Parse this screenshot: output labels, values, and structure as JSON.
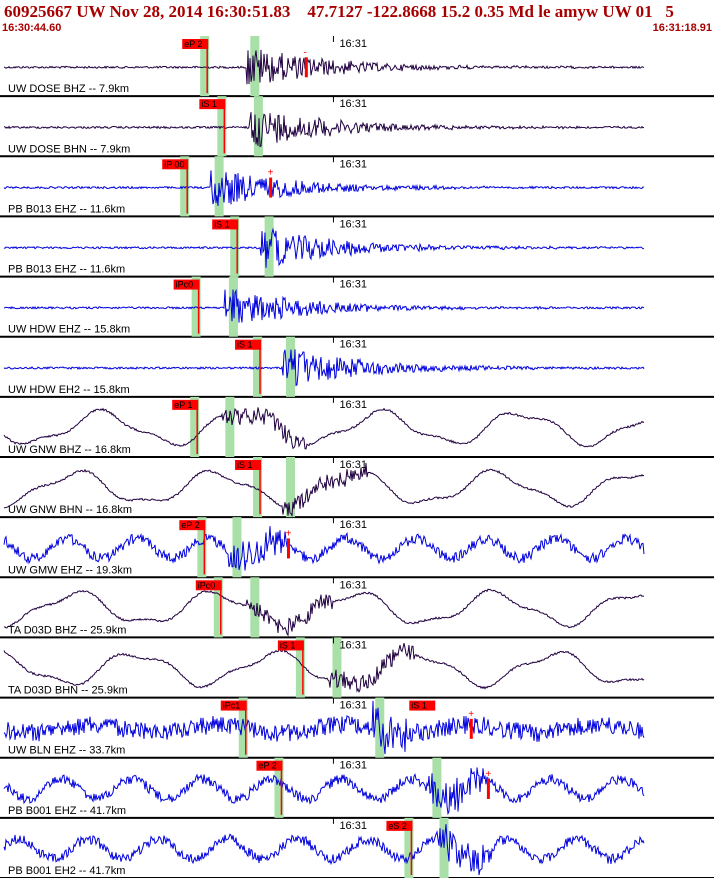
{
  "header": {
    "title": "60925667 UW Nov 28, 2014 16:30:51.83    47.7127 -122.8668 15.2 0.35 Md le amyw UW 01   5",
    "start_time": "16:30:44.60",
    "end_time": "16:31:18.91"
  },
  "colors": {
    "header_text": "#a80000",
    "pick_box": "#ff0000",
    "phase_band": "#a8e0a8",
    "trace_dark": "#200040",
    "trace_blue": "#0000dd",
    "panel_border": "#000000"
  },
  "chart_data": {
    "type": "seismogram",
    "time_tick_label": "16:31",
    "traces": [
      {
        "label": "UW DOSE BHZ -- 7.9km",
        "color": "dark",
        "style": "small",
        "onset": 0.345,
        "pick_label": "eP 2",
        "pick_pos": 0.286,
        "extra_marks": [
          "-"
        ]
      },
      {
        "label": "UW DOSE BHN -- 7.9km",
        "color": "dark",
        "style": "small",
        "onset": 0.35,
        "pick_label": "iS 1",
        "pick_pos": 0.31,
        "extra_marks": []
      },
      {
        "label": "PB B013 EHZ -- 11.6km",
        "color": "blue",
        "style": "small",
        "onset": 0.295,
        "pick_label": "iP 00",
        "pick_pos": 0.258,
        "extra_marks": [
          "+"
        ]
      },
      {
        "label": "PB B013 EHZ -- 11.6km",
        "color": "blue",
        "style": "small",
        "onset": 0.365,
        "pick_label": "iS 1",
        "pick_pos": 0.328,
        "extra_marks": []
      },
      {
        "label": "UW HDW EHZ -- 15.8km",
        "color": "blue",
        "style": "small",
        "onset": 0.315,
        "pick_label": "iPc0",
        "pick_pos": 0.274,
        "extra_marks": []
      },
      {
        "label": "UW HDW EH2 -- 15.8km",
        "color": "blue",
        "style": "small",
        "onset": 0.395,
        "pick_label": "iS 1",
        "pick_pos": 0.36,
        "extra_marks": []
      },
      {
        "label": "UW GNW BHZ -- 16.8km",
        "color": "dark",
        "style": "wave",
        "onset": 0.31,
        "pick_label": "eP 1",
        "pick_pos": 0.272,
        "extra_marks": []
      },
      {
        "label": "UW GNW BHN -- 16.8km",
        "color": "dark",
        "style": "wave",
        "onset": 0.395,
        "pick_label": "iS 1",
        "pick_pos": 0.36,
        "extra_marks": []
      },
      {
        "label": "UW GMW EHZ -- 19.3km",
        "color": "blue",
        "style": "noisy",
        "onset": 0.32,
        "pick_label": "eP 2",
        "pick_pos": 0.282,
        "extra_marks": [
          "+"
        ]
      },
      {
        "label": "TA D03D BHZ -- 25.9km",
        "color": "dark",
        "style": "wave",
        "onset": 0.345,
        "pick_label": "iPc0",
        "pick_pos": 0.305,
        "extra_marks": []
      },
      {
        "label": "TA D03D BHN -- 25.9km",
        "color": "dark",
        "style": "wave",
        "onset": 0.46,
        "pick_label": "iS 1",
        "pick_pos": 0.42,
        "extra_marks": []
      },
      {
        "label": "UW BLN EHZ -- 33.7km",
        "color": "blue",
        "style": "band",
        "onset": 0.52,
        "pick_label": "iPc1",
        "pick_pos": 0.34,
        "extra_marks": [
          "iS 1",
          "+"
        ]
      },
      {
        "label": "PB B001 EHZ -- 41.7km",
        "color": "blue",
        "style": "noisy",
        "onset": 0.6,
        "pick_label": "eP 2",
        "pick_pos": 0.39,
        "extra_marks": [
          "+"
        ]
      },
      {
        "label": "PB B001 EH2 -- 41.7km",
        "color": "blue",
        "style": "noisy",
        "onset": 0.61,
        "pick_label": "eS 2",
        "pick_pos": 0.572,
        "extra_marks": []
      }
    ]
  }
}
